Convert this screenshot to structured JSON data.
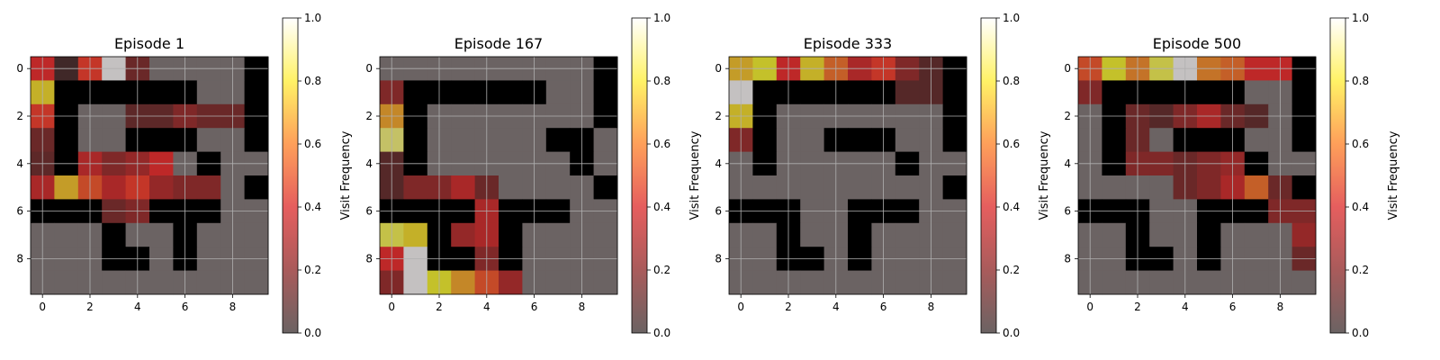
{
  "chart_data": {
    "type": "heatmap",
    "colormap": "hot (alpha 0.6 over gray)",
    "value_range": [
      0,
      1
    ],
    "colorbar": {
      "label": "Visit Frequency",
      "ticks": [
        "0.0",
        "0.2",
        "0.4",
        "0.6",
        "0.8",
        "1.0"
      ]
    },
    "axis_ticks": [
      "0",
      "2",
      "4",
      "6",
      "8"
    ],
    "grid": true,
    "wall_color": "#000000",
    "floor_color": "#6b6363",
    "panels": [
      {
        "title": "Episode 1",
        "walls": [
          "0000000001",
          "0111111001",
          "0100000001",
          "0100111001",
          "0100000100",
          "0000000001",
          "1110011100",
          "0001001000",
          "0001101000",
          "0000000000"
        ],
        "values": [
          [
            0.35,
            0.05,
            0.4,
            1.0,
            0.15,
            0,
            0,
            0,
            0,
            0
          ],
          [
            0.7,
            0,
            0,
            0,
            0,
            0,
            0,
            0,
            0,
            0
          ],
          [
            0.4,
            0,
            0,
            0,
            0.12,
            0.12,
            0.2,
            0.15,
            0.15,
            0
          ],
          [
            0.15,
            0,
            0,
            0,
            0,
            0,
            0,
            0,
            0,
            0
          ],
          [
            0.12,
            0,
            0.3,
            0.2,
            0.25,
            0.35,
            0,
            0,
            0,
            0
          ],
          [
            0.3,
            0.65,
            0.45,
            0.3,
            0.4,
            0.25,
            0.2,
            0.2,
            0,
            0
          ],
          [
            0,
            0,
            0,
            0.15,
            0.2,
            0,
            0,
            0,
            0,
            0
          ],
          [
            0,
            0,
            0,
            0,
            0,
            0,
            0,
            0,
            0,
            0
          ],
          [
            0,
            0,
            0,
            0,
            0,
            0,
            0,
            0,
            0,
            0
          ],
          [
            0,
            0,
            0,
            0,
            0,
            0,
            0,
            0,
            0,
            0
          ]
        ]
      },
      {
        "title": "Episode 167",
        "walls": [
          "0000000001",
          "0111111001",
          "0100000001",
          "0100000110",
          "0100000010",
          "0000000001",
          "1111011100",
          "0010010000",
          "0011010000",
          "0000000000"
        ],
        "values": [
          [
            0,
            0,
            0,
            0,
            0,
            0,
            0,
            0,
            0,
            0
          ],
          [
            0.2,
            0,
            0,
            0,
            0,
            0,
            0,
            0,
            0,
            0
          ],
          [
            0.6,
            0,
            0,
            0,
            0,
            0,
            0,
            0,
            0,
            0
          ],
          [
            0.85,
            0,
            0,
            0,
            0,
            0,
            0,
            0,
            0,
            0
          ],
          [
            0.1,
            0,
            0,
            0,
            0,
            0,
            0,
            0,
            0,
            0
          ],
          [
            0.1,
            0.2,
            0.2,
            0.3,
            0.15,
            0,
            0,
            0,
            0,
            0
          ],
          [
            0,
            0,
            0,
            0.35,
            0.3,
            0,
            0,
            0,
            0,
            0
          ],
          [
            0.8,
            0.7,
            0,
            0.25,
            0.3,
            0,
            0,
            0,
            0,
            0
          ],
          [
            0.35,
            1.0,
            0,
            0,
            0.2,
            0,
            0,
            0,
            0,
            0
          ],
          [
            0.2,
            1.0,
            0.75,
            0.6,
            0.45,
            0.25,
            0,
            0,
            0,
            0
          ]
        ]
      },
      {
        "title": "Episode 333",
        "walls": [
          "0000000001",
          "0111111001",
          "0100000001",
          "0100111001",
          "0100000100",
          "0000000001",
          "1110011100",
          "0010010000",
          "0011010000",
          "0000000000"
        ],
        "values": [
          [
            0.65,
            0.75,
            0.35,
            0.7,
            0.5,
            0.3,
            0.4,
            0.2,
            0.1,
            0
          ],
          [
            1.0,
            0,
            0,
            0,
            0,
            0,
            0,
            0.1,
            0.1,
            0
          ],
          [
            0.7,
            0,
            0,
            0,
            0,
            0,
            0,
            0,
            0,
            0
          ],
          [
            0.2,
            0,
            0,
            0,
            0,
            0,
            0,
            0,
            0,
            0
          ],
          [
            0,
            0,
            0,
            0,
            0,
            0,
            0,
            0,
            0,
            0
          ],
          [
            0,
            0,
            0,
            0,
            0,
            0,
            0,
            0,
            0,
            0
          ],
          [
            0,
            0,
            0,
            0,
            0,
            0,
            0,
            0,
            0,
            0
          ],
          [
            0,
            0,
            0,
            0,
            0,
            0,
            0,
            0,
            0,
            0
          ],
          [
            0,
            0,
            0,
            0,
            0,
            0,
            0,
            0,
            0,
            0
          ],
          [
            0,
            0,
            0,
            0,
            0,
            0,
            0,
            0,
            0,
            0
          ]
        ]
      },
      {
        "title": "Episode 500",
        "walls": [
          "0000000001",
          "0111111001",
          "0100000001",
          "0100111001",
          "0100000100",
          "0000000001",
          "1110011100",
          "0010010000",
          "0011010000",
          "0000000000"
        ],
        "values": [
          [
            0.45,
            0.75,
            0.55,
            0.8,
            1.0,
            0.55,
            0.5,
            0.35,
            0.35,
            0
          ],
          [
            0.2,
            0,
            0,
            0,
            0,
            0,
            0.1,
            0,
            0,
            0
          ],
          [
            0,
            0,
            0.15,
            0.1,
            0.2,
            0.3,
            0.15,
            0.1,
            0,
            0
          ],
          [
            0,
            0,
            0.15,
            0,
            0,
            0,
            0,
            0,
            0,
            0
          ],
          [
            0,
            0,
            0.2,
            0.2,
            0.15,
            0.2,
            0.25,
            0,
            0,
            0
          ],
          [
            0,
            0,
            0,
            0,
            0.15,
            0.2,
            0.3,
            0.5,
            0.15,
            0
          ],
          [
            0,
            0,
            0,
            0,
            0,
            0,
            0,
            0,
            0.2,
            0.2
          ],
          [
            0,
            0,
            0,
            0,
            0,
            0,
            0,
            0,
            0,
            0.25
          ],
          [
            0,
            0,
            0,
            0,
            0,
            0,
            0,
            0,
            0,
            0.15
          ],
          [
            0,
            0,
            0,
            0,
            0,
            0,
            0,
            0,
            0,
            0
          ]
        ]
      }
    ]
  }
}
